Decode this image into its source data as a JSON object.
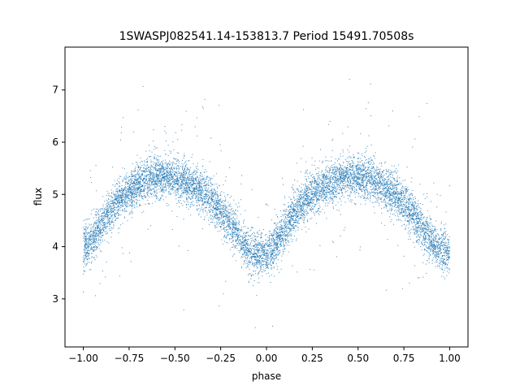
{
  "chart_data": {
    "type": "scatter",
    "title": "1SWASPJ082541.14-153813.7 Period 15491.70508s",
    "xlabel": "phase",
    "ylabel": "flux",
    "xlim": [
      -1.1,
      1.1
    ],
    "ylim": [
      2.08,
      7.82
    ],
    "xticks": [
      -1.0,
      -0.75,
      -0.5,
      -0.25,
      0.0,
      0.25,
      0.5,
      0.75,
      1.0
    ],
    "xtick_labels": [
      "−1.00",
      "−0.75",
      "−0.50",
      "−0.25",
      "0.00",
      "0.25",
      "0.50",
      "0.75",
      "1.00"
    ],
    "yticks": [
      3,
      4,
      5,
      6,
      7
    ],
    "ytick_labels": [
      "3",
      "4",
      "5",
      "6",
      "7"
    ],
    "grid": false,
    "point_color": "#1f77b4",
    "series": [
      {
        "x": [
          -1.0,
          -0.95,
          -0.9,
          -0.85,
          -0.8,
          -0.75,
          -0.7,
          -0.65,
          -0.6,
          -0.55,
          -0.5,
          -0.45,
          -0.4,
          -0.35,
          -0.3,
          -0.25,
          -0.2,
          -0.15,
          -0.1,
          -0.05,
          0.0,
          0.05,
          0.1,
          0.15,
          0.2,
          0.25,
          0.3,
          0.35,
          0.4,
          0.45,
          0.5,
          0.55,
          0.6,
          0.65,
          0.7,
          0.75,
          0.8,
          0.85,
          0.9,
          0.95,
          1.0
        ],
        "y": [
          3.95,
          4.15,
          4.45,
          4.7,
          4.9,
          5.05,
          5.2,
          5.3,
          5.35,
          5.35,
          5.3,
          5.25,
          5.15,
          5.05,
          4.9,
          4.7,
          4.45,
          4.2,
          3.95,
          3.85,
          3.85,
          4.05,
          4.35,
          4.65,
          4.85,
          5.0,
          5.1,
          5.2,
          5.3,
          5.35,
          5.35,
          5.3,
          5.25,
          5.15,
          5.0,
          4.85,
          4.6,
          4.35,
          4.1,
          3.95,
          3.9
        ]
      }
    ]
  }
}
